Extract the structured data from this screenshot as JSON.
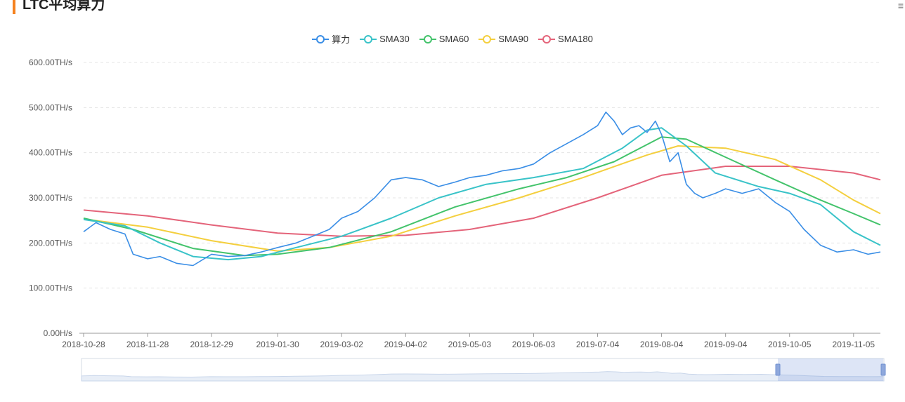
{
  "header": {
    "title": "LTC平均算力",
    "menu_icon": "menu-icon"
  },
  "colors": {
    "accent": "#f5821f",
    "series": [
      "#3a8ee6",
      "#39c3c8",
      "#43c36b",
      "#f4cf3e",
      "#e4647a"
    ]
  },
  "chart_data": {
    "type": "line",
    "title": "LTC平均算力",
    "legend_position": "top-center",
    "grid": true,
    "x_labels": [
      "2018-10-28",
      "2018-11-28",
      "2018-12-29",
      "2019-01-30",
      "2019-03-02",
      "2019-04-02",
      "2019-05-03",
      "2019-06-03",
      "2019-07-04",
      "2019-08-04",
      "2019-09-04",
      "2019-10-05",
      "2019-11-05"
    ],
    "x_range": [
      "2018-10-28",
      "2019-11-18"
    ],
    "y_ticks": [
      "0.00H/s",
      "100.00TH/s",
      "200.00TH/s",
      "300.00TH/s",
      "400.00TH/s",
      "500.00TH/s",
      "600.00TH/s"
    ],
    "ylim": [
      0,
      600
    ],
    "y_unit": "TH/s",
    "series": [
      {
        "name": "算力",
        "x": [
          "2018-10-28",
          "2018-11-03",
          "2018-11-10",
          "2018-11-17",
          "2018-11-21",
          "2018-11-28",
          "2018-12-04",
          "2018-12-12",
          "2018-12-20",
          "2018-12-29",
          "2019-01-06",
          "2019-01-14",
          "2019-01-22",
          "2019-01-30",
          "2019-02-08",
          "2019-02-16",
          "2019-02-24",
          "2019-03-02",
          "2019-03-10",
          "2019-03-18",
          "2019-03-26",
          "2019-04-02",
          "2019-04-10",
          "2019-04-18",
          "2019-04-26",
          "2019-05-03",
          "2019-05-11",
          "2019-05-19",
          "2019-05-27",
          "2019-06-03",
          "2019-06-11",
          "2019-06-19",
          "2019-06-27",
          "2019-07-04",
          "2019-07-08",
          "2019-07-12",
          "2019-07-16",
          "2019-07-20",
          "2019-07-24",
          "2019-07-28",
          "2019-08-01",
          "2019-08-04",
          "2019-08-08",
          "2019-08-12",
          "2019-08-16",
          "2019-08-20",
          "2019-08-24",
          "2019-08-30",
          "2019-09-04",
          "2019-09-12",
          "2019-09-20",
          "2019-09-28",
          "2019-10-05",
          "2019-10-12",
          "2019-10-20",
          "2019-10-28",
          "2019-11-05",
          "2019-11-12",
          "2019-11-18"
        ],
        "values": [
          225,
          245,
          230,
          220,
          175,
          165,
          170,
          155,
          150,
          175,
          170,
          172,
          180,
          190,
          200,
          215,
          230,
          255,
          270,
          300,
          340,
          345,
          340,
          325,
          335,
          345,
          350,
          360,
          365,
          375,
          400,
          420,
          440,
          460,
          490,
          470,
          440,
          455,
          460,
          445,
          470,
          440,
          380,
          400,
          330,
          310,
          300,
          310,
          320,
          310,
          320,
          290,
          270,
          230,
          195,
          180,
          185,
          175,
          180
        ]
      },
      {
        "name": "SMA30",
        "x": [
          "2018-10-28",
          "2018-11-17",
          "2018-12-04",
          "2018-12-20",
          "2019-01-06",
          "2019-01-22",
          "2019-02-08",
          "2019-03-02",
          "2019-03-26",
          "2019-04-18",
          "2019-05-11",
          "2019-06-03",
          "2019-06-27",
          "2019-07-16",
          "2019-07-28",
          "2019-08-04",
          "2019-08-16",
          "2019-08-30",
          "2019-09-20",
          "2019-10-05",
          "2019-10-20",
          "2019-11-05",
          "2019-11-18"
        ],
        "values": [
          252,
          238,
          200,
          170,
          163,
          170,
          190,
          215,
          255,
          300,
          330,
          345,
          365,
          410,
          450,
          455,
          415,
          355,
          325,
          310,
          285,
          225,
          195
        ]
      },
      {
        "name": "SMA60",
        "x": [
          "2018-10-28",
          "2018-11-21",
          "2018-12-20",
          "2019-01-14",
          "2019-01-30",
          "2019-02-24",
          "2019-03-26",
          "2019-04-26",
          "2019-05-27",
          "2019-06-19",
          "2019-07-12",
          "2019-08-04",
          "2019-08-16",
          "2019-09-04",
          "2019-09-28",
          "2019-10-20",
          "2019-11-05",
          "2019-11-18"
        ],
        "values": [
          255,
          230,
          188,
          172,
          175,
          190,
          225,
          280,
          320,
          345,
          380,
          435,
          430,
          390,
          340,
          295,
          265,
          240
        ]
      },
      {
        "name": "SMA90",
        "x": [
          "2018-10-28",
          "2018-11-28",
          "2018-12-29",
          "2019-01-30",
          "2019-02-24",
          "2019-03-26",
          "2019-04-26",
          "2019-05-27",
          "2019-06-27",
          "2019-07-28",
          "2019-08-12",
          "2019-09-04",
          "2019-09-28",
          "2019-10-20",
          "2019-11-05",
          "2019-11-18"
        ],
        "values": [
          253,
          235,
          205,
          182,
          190,
          215,
          260,
          300,
          345,
          395,
          415,
          410,
          385,
          340,
          295,
          265
        ]
      },
      {
        "name": "SMA180",
        "x": [
          "2018-10-28",
          "2018-11-28",
          "2018-12-29",
          "2019-01-30",
          "2019-03-02",
          "2019-04-02",
          "2019-05-03",
          "2019-06-03",
          "2019-07-04",
          "2019-08-04",
          "2019-09-04",
          "2019-10-05",
          "2019-11-05",
          "2019-11-18"
        ],
        "values": [
          273,
          260,
          240,
          222,
          215,
          217,
          230,
          255,
          300,
          350,
          370,
          370,
          355,
          340
        ]
      }
    ]
  }
}
